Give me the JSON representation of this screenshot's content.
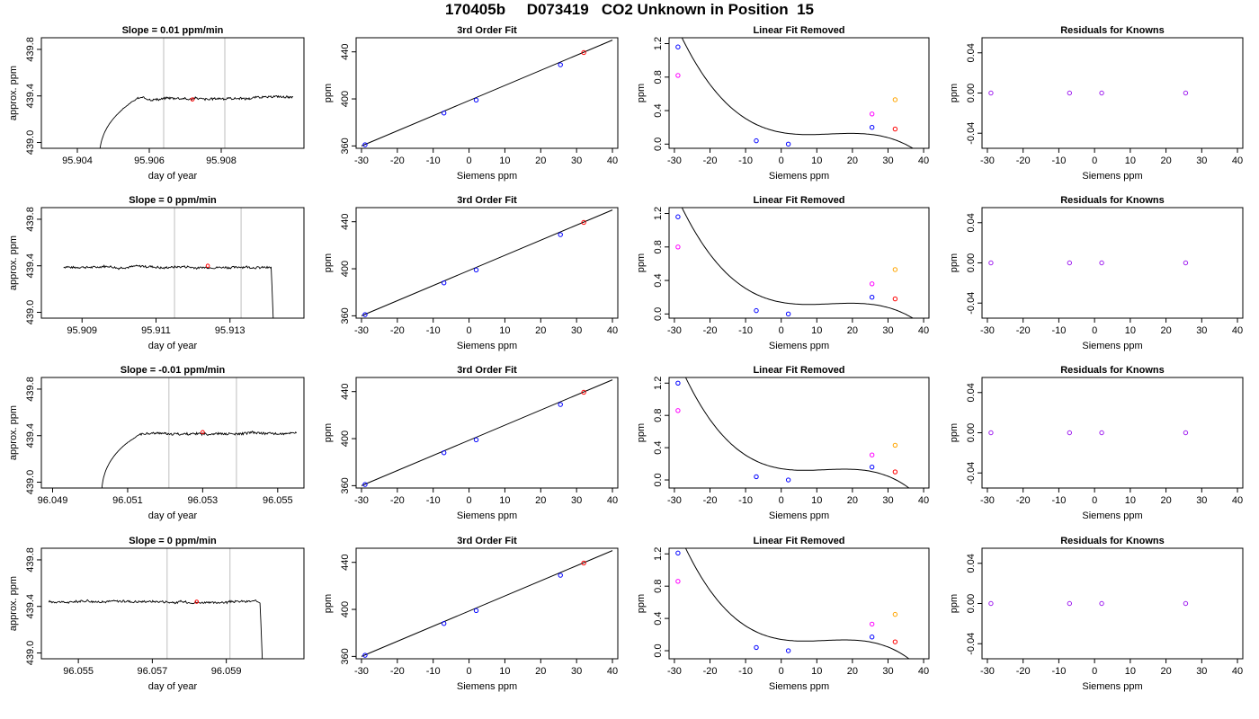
{
  "title": "170405b     D073419   CO2 Unknown in Position  15",
  "colors": {
    "trace": "#000000",
    "vline": "#bebebe",
    "red": "#ff0000",
    "blue": "#0000ff",
    "purple": "#a020f0",
    "magenta": "#ff00ff",
    "orange": "#ffa500"
  },
  "chart_data": [
    {
      "type": "line",
      "panel": "time-series",
      "row": 0,
      "title": "Slope =  0.01  ppm/min",
      "xlabel": "day of year",
      "ylabel": "approx. ppm",
      "xlim": [
        95.903,
        95.9103
      ],
      "ylim": [
        438.95,
        439.9
      ],
      "xticks": [
        "95.904",
        "95.906",
        "95.908"
      ],
      "yticks": [
        "439.0",
        "439.4",
        "439.8"
      ],
      "vlines": [
        95.9064,
        95.9081
      ],
      "marker": {
        "x": 95.9072,
        "y": 439.37
      },
      "profile": {
        "start": 95.9046,
        "end": 95.91,
        "plateau": 439.38,
        "rise": "start",
        "seed": 3
      }
    },
    {
      "type": "line",
      "panel": "cubic-fit",
      "row": 0,
      "title": "3rd Order Fit",
      "xlabel": "Siemens ppm",
      "ylabel": "ppm",
      "xlim": [
        -31.5,
        41.5
      ],
      "ylim": [
        358,
        452
      ],
      "xticks": [
        "-30",
        "-20",
        "-10",
        "0",
        "10",
        "20",
        "30",
        "40"
      ],
      "yticks": [
        "360",
        "400",
        "440"
      ],
      "points": [
        {
          "x": -29,
          "y": 361,
          "c": "blue"
        },
        {
          "x": -7,
          "y": 388,
          "c": "blue"
        },
        {
          "x": 2,
          "y": 399,
          "c": "blue"
        },
        {
          "x": 25.5,
          "y": 429,
          "c": "blue"
        },
        {
          "x": 32,
          "y": 439.4,
          "c": "red"
        }
      ],
      "line": {
        "x": [
          -30,
          40
        ],
        "y": [
          360,
          450
        ]
      }
    },
    {
      "type": "line",
      "panel": "linear-fit-removed",
      "row": 0,
      "title": "Linear Fit Removed",
      "xlabel": "Siemens ppm",
      "ylabel": "ppm",
      "xlim": [
        -31.5,
        41.5
      ],
      "ylim": [
        -0.05,
        1.27
      ],
      "xticks": [
        "-30",
        "-20",
        "-10",
        "0",
        "10",
        "20",
        "30",
        "40"
      ],
      "yticks": [
        "0.0",
        "0.4",
        "0.8",
        "1.2"
      ],
      "points": [
        {
          "x": -29,
          "y": 1.16,
          "c": "blue"
        },
        {
          "x": -29,
          "y": 0.82,
          "c": "magenta"
        },
        {
          "x": -7,
          "y": 0.04,
          "c": "blue"
        },
        {
          "x": 2,
          "y": 0.0,
          "c": "blue"
        },
        {
          "x": 25.5,
          "y": 0.2,
          "c": "blue"
        },
        {
          "x": 25.5,
          "y": 0.36,
          "c": "magenta"
        },
        {
          "x": 32,
          "y": 0.53,
          "c": "orange"
        },
        {
          "x": 32,
          "y": 0.18,
          "c": "red"
        }
      ],
      "curve": [
        0.14,
        -0.0078,
        0.0007,
        -1.7e-05
      ]
    },
    {
      "type": "scatter",
      "panel": "residuals",
      "row": 0,
      "title": "Residuals for Knowns",
      "xlabel": "Siemens ppm",
      "ylabel": "ppm",
      "xlim": [
        -31.5,
        41.5
      ],
      "ylim": [
        -0.055,
        0.055
      ],
      "xticks": [
        "-30",
        "-20",
        "-10",
        "0",
        "10",
        "20",
        "30",
        "40"
      ],
      "yticks": [
        "-0.04",
        "0.00",
        "0.04"
      ],
      "points": [
        {
          "x": -29,
          "y": 0,
          "c": "purple"
        },
        {
          "x": -7,
          "y": 0,
          "c": "purple"
        },
        {
          "x": 2,
          "y": 0,
          "c": "purple"
        },
        {
          "x": 25.5,
          "y": 0,
          "c": "purple"
        }
      ]
    },
    {
      "type": "line",
      "panel": "time-series",
      "row": 1,
      "title": "Slope =  0  ppm/min",
      "xlabel": "day of year",
      "ylabel": "approx. ppm",
      "xlim": [
        95.9079,
        95.915
      ],
      "ylim": [
        438.95,
        439.9
      ],
      "xticks": [
        "95.909",
        "95.911",
        "95.913"
      ],
      "yticks": [
        "439.0",
        "439.4",
        "439.8"
      ],
      "vlines": [
        95.9115,
        95.9133
      ],
      "marker": {
        "x": 95.9124,
        "y": 439.4
      },
      "profile": {
        "start": 95.9085,
        "end": 95.9142,
        "plateau": 439.39,
        "rise": "end",
        "seed": 7
      }
    },
    {
      "type": "line",
      "panel": "cubic-fit",
      "row": 1,
      "title": "3rd Order Fit",
      "xlabel": "Siemens ppm",
      "ylabel": "ppm",
      "xlim": [
        -31.5,
        41.5
      ],
      "ylim": [
        358,
        452
      ],
      "xticks": [
        "-30",
        "-20",
        "-10",
        "0",
        "10",
        "20",
        "30",
        "40"
      ],
      "yticks": [
        "360",
        "400",
        "440"
      ],
      "points": [
        {
          "x": -29,
          "y": 361,
          "c": "blue"
        },
        {
          "x": -7,
          "y": 388,
          "c": "blue"
        },
        {
          "x": 2,
          "y": 399,
          "c": "blue"
        },
        {
          "x": 25.5,
          "y": 429,
          "c": "blue"
        },
        {
          "x": 32,
          "y": 439.4,
          "c": "red"
        }
      ],
      "line": {
        "x": [
          -30,
          40
        ],
        "y": [
          360,
          450
        ]
      }
    },
    {
      "type": "line",
      "panel": "linear-fit-removed",
      "row": 1,
      "title": "Linear Fit Removed",
      "xlabel": "Siemens ppm",
      "ylabel": "ppm",
      "xlim": [
        -31.5,
        41.5
      ],
      "ylim": [
        -0.05,
        1.27
      ],
      "xticks": [
        "-30",
        "-20",
        "-10",
        "0",
        "10",
        "20",
        "30",
        "40"
      ],
      "yticks": [
        "0.0",
        "0.4",
        "0.8",
        "1.2"
      ],
      "points": [
        {
          "x": -29,
          "y": 1.16,
          "c": "blue"
        },
        {
          "x": -29,
          "y": 0.8,
          "c": "magenta"
        },
        {
          "x": -7,
          "y": 0.04,
          "c": "blue"
        },
        {
          "x": 2,
          "y": 0.0,
          "c": "blue"
        },
        {
          "x": 25.5,
          "y": 0.2,
          "c": "blue"
        },
        {
          "x": 25.5,
          "y": 0.36,
          "c": "magenta"
        },
        {
          "x": 32,
          "y": 0.53,
          "c": "orange"
        },
        {
          "x": 32,
          "y": 0.18,
          "c": "red"
        }
      ],
      "curve": [
        0.14,
        -0.0078,
        0.0007,
        -1.7e-05
      ]
    },
    {
      "type": "scatter",
      "panel": "residuals",
      "row": 1,
      "title": "Residuals for Knowns",
      "xlabel": "Siemens ppm",
      "ylabel": "ppm",
      "xlim": [
        -31.5,
        41.5
      ],
      "ylim": [
        -0.055,
        0.055
      ],
      "xticks": [
        "-30",
        "-20",
        "-10",
        "0",
        "10",
        "20",
        "30",
        "40"
      ],
      "yticks": [
        "-0.04",
        "0.00",
        "0.04"
      ],
      "points": [
        {
          "x": -29,
          "y": 0,
          "c": "purple"
        },
        {
          "x": -7,
          "y": 0,
          "c": "purple"
        },
        {
          "x": 2,
          "y": 0,
          "c": "purple"
        },
        {
          "x": 25.5,
          "y": 0,
          "c": "purple"
        }
      ]
    },
    {
      "type": "line",
      "panel": "time-series",
      "row": 2,
      "title": "Slope =  -0.01  ppm/min",
      "xlabel": "day of year",
      "ylabel": "approx. ppm",
      "xlim": [
        96.0487,
        96.0557
      ],
      "ylim": [
        438.95,
        439.9
      ],
      "xticks": [
        "96.049",
        "96.051",
        "96.053",
        "96.055"
      ],
      "yticks": [
        "439.0",
        "439.4",
        "439.8"
      ],
      "vlines": [
        96.0521,
        96.0539
      ],
      "marker": {
        "x": 96.053,
        "y": 439.43
      },
      "profile": {
        "start": 96.0503,
        "end": 96.0555,
        "plateau": 439.42,
        "rise": "start",
        "seed": 11
      }
    },
    {
      "type": "line",
      "panel": "cubic-fit",
      "row": 2,
      "title": "3rd Order Fit",
      "xlabel": "Siemens ppm",
      "ylabel": "ppm",
      "xlim": [
        -31.5,
        41.5
      ],
      "ylim": [
        358,
        452
      ],
      "xticks": [
        "-30",
        "-20",
        "-10",
        "0",
        "10",
        "20",
        "30",
        "40"
      ],
      "yticks": [
        "360",
        "400",
        "440"
      ],
      "points": [
        {
          "x": -29,
          "y": 361,
          "c": "blue"
        },
        {
          "x": -7,
          "y": 388,
          "c": "blue"
        },
        {
          "x": 2,
          "y": 399,
          "c": "blue"
        },
        {
          "x": 25.5,
          "y": 429,
          "c": "blue"
        },
        {
          "x": 32,
          "y": 439.4,
          "c": "red"
        }
      ],
      "line": {
        "x": [
          -30,
          40
        ],
        "y": [
          360,
          450
        ]
      }
    },
    {
      "type": "line",
      "panel": "linear-fit-removed",
      "row": 2,
      "title": "Linear Fit Removed",
      "xlabel": "Siemens ppm",
      "ylabel": "ppm",
      "xlim": [
        -31.5,
        41.5
      ],
      "ylim": [
        -0.1,
        1.27
      ],
      "xticks": [
        "-30",
        "-20",
        "-10",
        "0",
        "10",
        "20",
        "30",
        "40"
      ],
      "yticks": [
        "0.0",
        "0.4",
        "0.8",
        "1.2"
      ],
      "points": [
        {
          "x": -29,
          "y": 1.2,
          "c": "blue"
        },
        {
          "x": -29,
          "y": 0.86,
          "c": "magenta"
        },
        {
          "x": -7,
          "y": 0.04,
          "c": "blue"
        },
        {
          "x": 2,
          "y": 0.0,
          "c": "blue"
        },
        {
          "x": 25.5,
          "y": 0.16,
          "c": "blue"
        },
        {
          "x": 25.5,
          "y": 0.31,
          "c": "magenta"
        },
        {
          "x": 32,
          "y": 0.43,
          "c": "orange"
        },
        {
          "x": 32,
          "y": 0.1,
          "c": "red"
        }
      ],
      "curve": [
        0.14,
        -0.0072,
        0.00075,
        -2.05e-05
      ]
    },
    {
      "type": "scatter",
      "panel": "residuals",
      "row": 2,
      "title": "Residuals for Knowns",
      "xlabel": "Siemens ppm",
      "ylabel": "ppm",
      "xlim": [
        -31.5,
        41.5
      ],
      "ylim": [
        -0.055,
        0.055
      ],
      "xticks": [
        "-30",
        "-20",
        "-10",
        "0",
        "10",
        "20",
        "30",
        "40"
      ],
      "yticks": [
        "-0.04",
        "0.00",
        "0.04"
      ],
      "points": [
        {
          "x": -29,
          "y": 0,
          "c": "purple"
        },
        {
          "x": -7,
          "y": 0,
          "c": "purple"
        },
        {
          "x": 2,
          "y": 0,
          "c": "purple"
        },
        {
          "x": 25.5,
          "y": 0,
          "c": "purple"
        }
      ]
    },
    {
      "type": "line",
      "panel": "time-series",
      "row": 3,
      "title": "Slope =  0  ppm/min",
      "xlabel": "day of year",
      "ylabel": "approx. ppm",
      "xlim": [
        96.054,
        96.0611
      ],
      "ylim": [
        438.95,
        439.9
      ],
      "xticks": [
        "96.055",
        "96.057",
        "96.059"
      ],
      "yticks": [
        "439.0",
        "439.4",
        "439.8"
      ],
      "vlines": [
        96.0574,
        96.0591
      ],
      "marker": {
        "x": 96.0582,
        "y": 439.44
      },
      "profile": {
        "start": 96.0542,
        "end": 96.06,
        "plateau": 439.44,
        "rise": "end",
        "seed": 17
      }
    },
    {
      "type": "line",
      "panel": "cubic-fit",
      "row": 3,
      "title": "3rd Order Fit",
      "xlabel": "Siemens ppm",
      "ylabel": "ppm",
      "xlim": [
        -31.5,
        41.5
      ],
      "ylim": [
        358,
        452
      ],
      "xticks": [
        "-30",
        "-20",
        "-10",
        "0",
        "10",
        "20",
        "30",
        "40"
      ],
      "yticks": [
        "360",
        "400",
        "440"
      ],
      "points": [
        {
          "x": -29,
          "y": 361,
          "c": "blue"
        },
        {
          "x": -7,
          "y": 388,
          "c": "blue"
        },
        {
          "x": 2,
          "y": 399,
          "c": "blue"
        },
        {
          "x": 25.5,
          "y": 429,
          "c": "blue"
        },
        {
          "x": 32,
          "y": 439.4,
          "c": "red"
        }
      ],
      "line": {
        "x": [
          -30,
          40
        ],
        "y": [
          360,
          450
        ]
      }
    },
    {
      "type": "line",
      "panel": "linear-fit-removed",
      "row": 3,
      "title": "Linear Fit Removed",
      "xlabel": "Siemens ppm",
      "ylabel": "ppm",
      "xlim": [
        -31.5,
        41.5
      ],
      "ylim": [
        -0.1,
        1.27
      ],
      "xticks": [
        "-30",
        "-20",
        "-10",
        "0",
        "10",
        "20",
        "30",
        "40"
      ],
      "yticks": [
        "0.0",
        "0.4",
        "0.8",
        "1.2"
      ],
      "points": [
        {
          "x": -29,
          "y": 1.21,
          "c": "blue"
        },
        {
          "x": -29,
          "y": 0.86,
          "c": "magenta"
        },
        {
          "x": -7,
          "y": 0.04,
          "c": "blue"
        },
        {
          "x": 2,
          "y": 0.0,
          "c": "blue"
        },
        {
          "x": 25.5,
          "y": 0.17,
          "c": "blue"
        },
        {
          "x": 25.5,
          "y": 0.33,
          "c": "magenta"
        },
        {
          "x": 32,
          "y": 0.45,
          "c": "orange"
        },
        {
          "x": 32,
          "y": 0.11,
          "c": "red"
        }
      ],
      "curve": [
        0.14,
        -0.0072,
        0.00075,
        -2.05e-05
      ]
    },
    {
      "type": "scatter",
      "panel": "residuals",
      "row": 3,
      "title": "Residuals for Knowns",
      "xlabel": "Siemens ppm",
      "ylabel": "ppm",
      "xlim": [
        -31.5,
        41.5
      ],
      "ylim": [
        -0.055,
        0.055
      ],
      "xticks": [
        "-30",
        "-20",
        "-10",
        "0",
        "10",
        "20",
        "30",
        "40"
      ],
      "yticks": [
        "-0.04",
        "0.00",
        "0.04"
      ],
      "points": [
        {
          "x": -29,
          "y": 0,
          "c": "purple"
        },
        {
          "x": -7,
          "y": 0,
          "c": "purple"
        },
        {
          "x": 2,
          "y": 0,
          "c": "purple"
        },
        {
          "x": 25.5,
          "y": 0,
          "c": "purple"
        }
      ]
    }
  ]
}
